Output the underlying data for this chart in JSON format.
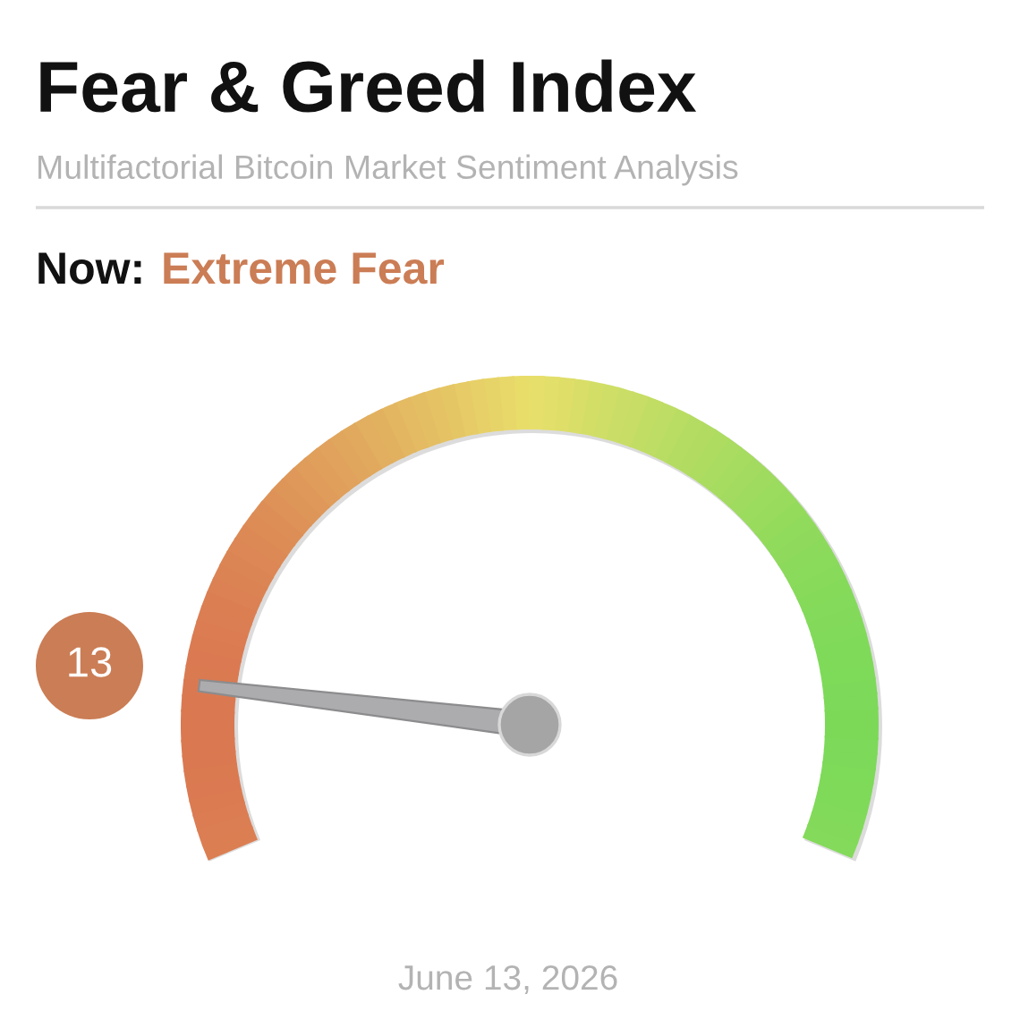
{
  "chart_data": {
    "type": "other",
    "title": "Fear & Greed Index",
    "subtitle": "Multifactorial Bitcoin Market Sentiment Analysis",
    "values": [
      13
    ],
    "data_labels": true,
    "color": "#cb7d55",
    "annotations": [
      "Now:",
      "Extreme Fear",
      "June 13, 2026"
    ]
  }
}
